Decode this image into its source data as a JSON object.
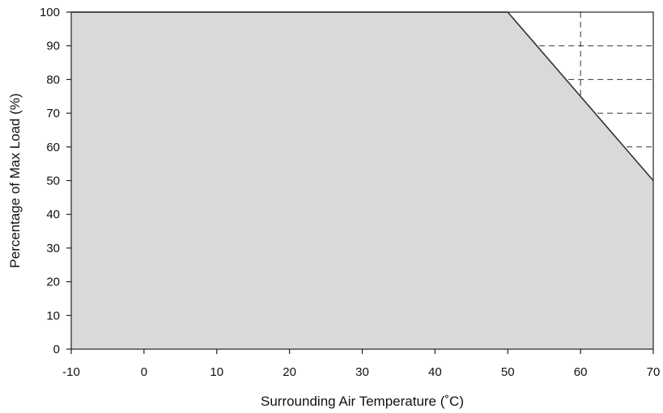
{
  "chart_data": {
    "type": "area",
    "title": "",
    "xlabel": "Surrounding Air Temperature (˚C)",
    "ylabel": "Percentage of Max Load (%)",
    "xlim": [
      -10,
      70
    ],
    "ylim": [
      0,
      100
    ],
    "x_ticks": [
      -10,
      0,
      10,
      20,
      30,
      40,
      50,
      60,
      70
    ],
    "y_ticks": [
      0,
      10,
      20,
      30,
      40,
      50,
      60,
      70,
      80,
      90,
      100
    ],
    "x_tick_labels": [
      "-10",
      "0",
      "10",
      "20",
      "30",
      "40",
      "50",
      "60",
      "70"
    ],
    "y_tick_labels": [
      "0",
      "10",
      "20",
      "30",
      "40",
      "50",
      "60",
      "70",
      "80",
      "90",
      "100"
    ],
    "series": [
      {
        "x": [
          -10,
          50,
          70
        ],
        "y": [
          100,
          100,
          50
        ]
      }
    ],
    "dashed_gridlines_y": [
      60,
      70,
      80,
      90
    ],
    "dashed_gridlines_x": [
      60
    ],
    "grid": "dashed, upper-right region only",
    "legend": "none",
    "colors": {
      "fill": "#d9d9d9",
      "line": "#333333",
      "axis": "#222222",
      "grid": "#333333"
    }
  }
}
